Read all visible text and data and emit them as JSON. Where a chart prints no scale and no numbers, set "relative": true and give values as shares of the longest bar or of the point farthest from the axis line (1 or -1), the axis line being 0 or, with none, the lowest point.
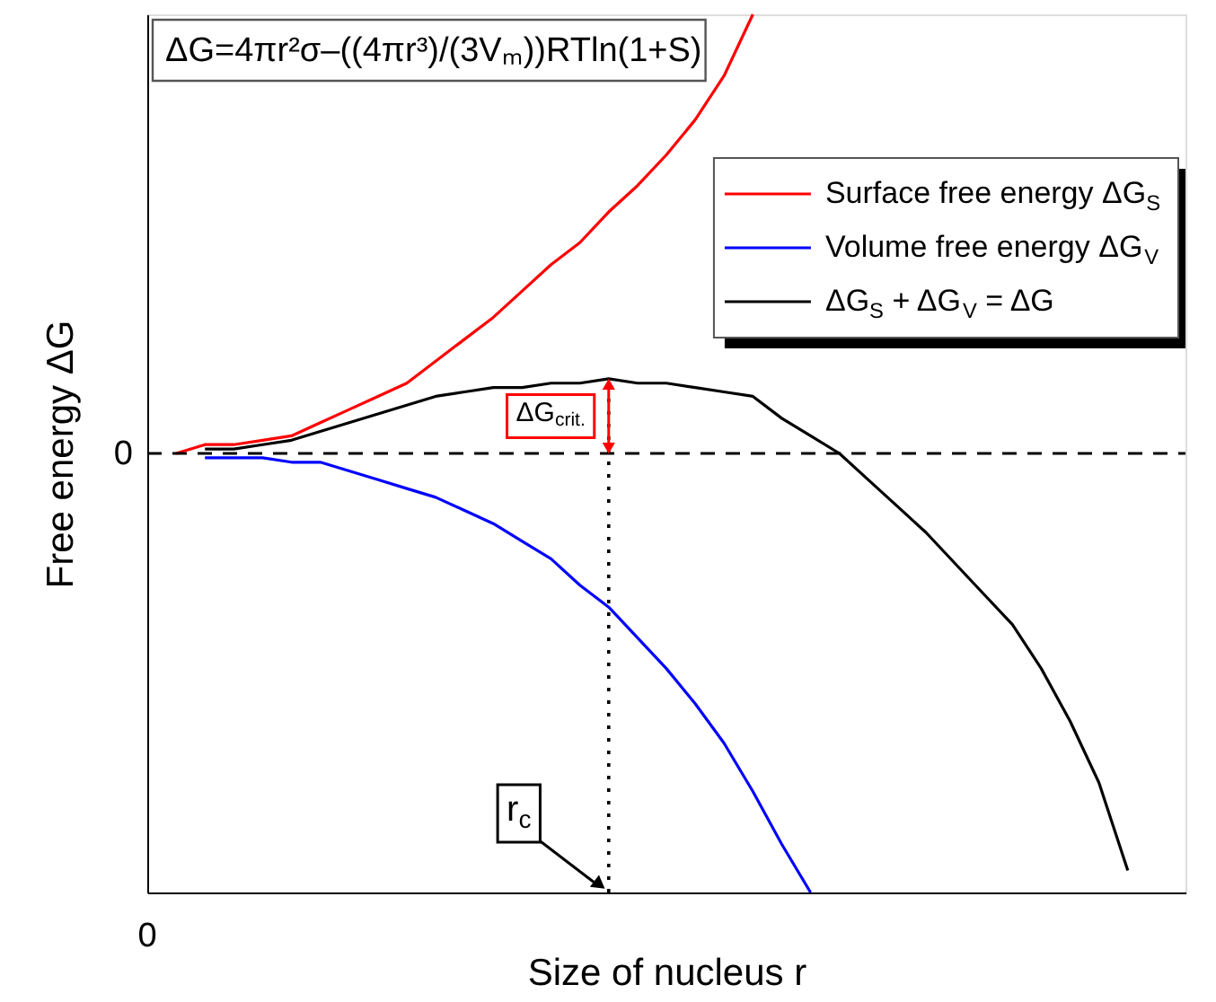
{
  "chart_data": {
    "type": "line",
    "relative": true,
    "xlabel": "Size of nucleus r",
    "ylabel": "Free energy ΔG",
    "categories": [
      null,
      null,
      null,
      null,
      null,
      null,
      null,
      null,
      null,
      null,
      null,
      null,
      null,
      null,
      null,
      null,
      null,
      null,
      null,
      null,
      null,
      null,
      null,
      null,
      null,
      null,
      null,
      null,
      null,
      null,
      null,
      null,
      null,
      null,
      null,
      null,
      null
    ],
    "series": [
      {
        "name": "Surface free energy ΔG$_{S}$",
        "color": "#ff0000",
        "values": [
          null,
          0,
          0.02,
          0.02,
          0.03,
          0.04,
          0.07,
          0.1,
          0.13,
          0.16,
          0.21,
          0.26,
          0.31,
          0.37,
          0.43,
          0.48,
          0.55,
          0.61,
          0.68,
          0.76,
          0.86,
          1.0,
          null,
          null,
          null,
          null,
          null,
          null,
          null,
          null,
          null,
          null,
          null,
          null,
          null,
          null,
          null
        ]
      },
      {
        "name": "Volume free energy ΔG$_{V}$",
        "color": "#0000ff",
        "values": [
          null,
          null,
          -0.01,
          -0.01,
          -0.01,
          -0.02,
          -0.02,
          -0.04,
          -0.06,
          -0.08,
          -0.1,
          -0.13,
          -0.16,
          -0.2,
          -0.24,
          -0.3,
          -0.35,
          -0.42,
          -0.49,
          -0.57,
          -0.66,
          -0.77,
          -0.89,
          -1.0,
          null,
          null,
          null,
          null,
          null,
          null,
          null,
          null,
          null,
          null,
          null,
          null,
          null
        ]
      },
      {
        "name": "ΔG$_{S}$ + ΔG$_{V}$ = ΔG",
        "color": "#000000",
        "values": [
          null,
          null,
          0.01,
          0.01,
          0.02,
          0.03,
          0.05,
          0.07,
          0.09,
          0.11,
          0.13,
          0.14,
          0.15,
          0.15,
          0.16,
          0.16,
          0.17,
          0.16,
          0.16,
          0.15,
          0.14,
          0.13,
          0.08,
          0.04,
          0,
          -0.06,
          -0.12,
          -0.18,
          -0.25,
          -0.32,
          -0.39,
          -0.49,
          -0.61,
          -0.75,
          -0.95,
          null,
          null
        ]
      }
    ],
    "ref_lines": [
      {
        "axis": "y",
        "value": 0,
        "label": "0",
        "line_style": "dashed",
        "color": "#000000"
      }
    ],
    "annotations": [
      "ΔG=4πr²σ–((4πr³)/(3Vₘ))RTln(1+S)",
      "ΔG$_{crit.}$",
      "r$_{c}$",
      "0"
    ],
    "legend": "top right",
    "grid": false,
    "marker": "none",
    "line_style": "solid"
  }
}
